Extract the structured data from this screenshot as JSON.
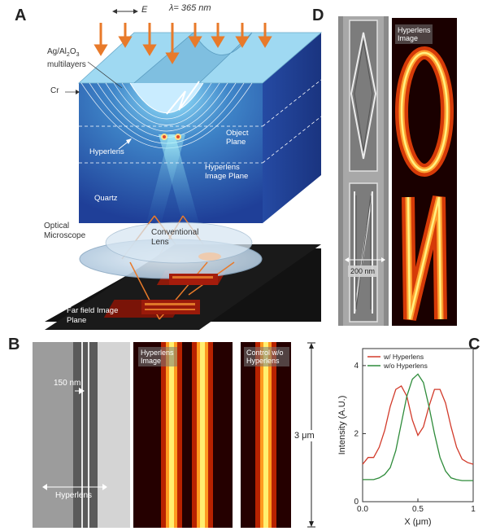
{
  "panelA": {
    "letter": "A",
    "polarization": "E",
    "wavelength": "λ= 365 nm",
    "multilayer_label_1": "Ag/Al",
    "multilayer_label_2": "O",
    "multilayer_sub": "2",
    "multilayer_sub2": "3",
    "multilayer_label_3": "multilayers",
    "cr_label": "Cr",
    "object_plane": "Object Plane",
    "hyperlens": "Hyperlens",
    "hyperlens_image_plane": "Hyperlens Image Plane",
    "quartz": "Quartz",
    "optical_microscope": "Optical Microscope",
    "conventional_lens": "Conventional Lens",
    "far_field": "Far field Image Plane"
  },
  "panelB": {
    "letter": "B",
    "scale_150": "150 nm",
    "hyperlens": "Hyperlens",
    "hyperlens_image": "Hyperlens Image",
    "control": "Control w/o Hyperlens",
    "scale_3um": "3 μm"
  },
  "panelD": {
    "letter": "D",
    "hyperlens_image": "Hyperlens Image",
    "scale_200": "200 nm"
  },
  "panelC": {
    "letter": "C"
  },
  "chart_data": {
    "type": "line",
    "xlabel": "X (μm)",
    "ylabel": "Intensity (A.U.)",
    "xlim": [
      0,
      1
    ],
    "ylim": [
      0,
      4.5
    ],
    "xticks": [
      "0.0",
      "0.5",
      "1"
    ],
    "yticks": [
      "0",
      "2",
      "4"
    ],
    "legend_position": "top-left",
    "series": [
      {
        "name": "w/ Hyperlens",
        "color": "#d23a2a",
        "x": [
          0.0,
          0.05,
          0.1,
          0.15,
          0.2,
          0.25,
          0.3,
          0.35,
          0.4,
          0.45,
          0.5,
          0.55,
          0.6,
          0.65,
          0.7,
          0.75,
          0.8,
          0.85,
          0.9,
          0.95,
          1.0
        ],
        "y": [
          1.1,
          1.3,
          1.3,
          1.6,
          2.1,
          2.8,
          3.3,
          3.4,
          3.1,
          2.4,
          1.95,
          2.2,
          2.8,
          3.3,
          3.3,
          2.9,
          2.2,
          1.6,
          1.25,
          1.15,
          1.1
        ]
      },
      {
        "name": "w/o Hyperlens",
        "color": "#2e8b3a",
        "x": [
          0.0,
          0.05,
          0.1,
          0.15,
          0.2,
          0.25,
          0.3,
          0.35,
          0.4,
          0.45,
          0.5,
          0.55,
          0.6,
          0.65,
          0.7,
          0.75,
          0.8,
          0.85,
          0.9,
          0.95,
          1.0
        ],
        "y": [
          0.65,
          0.65,
          0.65,
          0.7,
          0.8,
          1.0,
          1.5,
          2.3,
          3.1,
          3.6,
          3.75,
          3.5,
          2.8,
          2.0,
          1.3,
          0.9,
          0.7,
          0.65,
          0.62,
          0.62,
          0.62
        ]
      }
    ]
  }
}
